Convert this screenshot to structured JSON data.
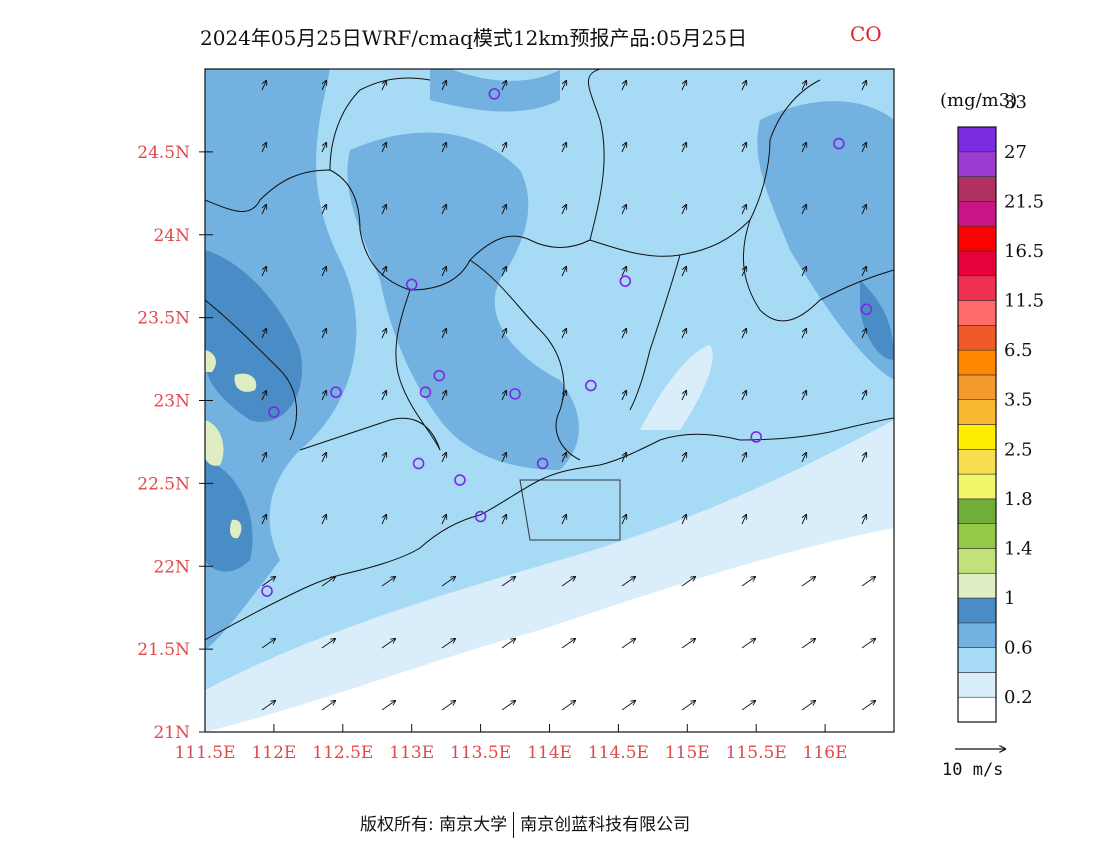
{
  "title": {
    "text": "2024年05月25日WRF/cmaq模式12km预报产品:05月25日",
    "species": "CO"
  },
  "map": {
    "lon_range": [
      111.5,
      116.5
    ],
    "lat_range": [
      21.0,
      25.0
    ],
    "lat_ticks": [
      "21N",
      "21.5N",
      "22N",
      "22.5N",
      "23N",
      "23.5N",
      "24N",
      "24.5N"
    ],
    "lon_ticks": [
      "111.5E",
      "112E",
      "112.5E",
      "113E",
      "113.5E",
      "114E",
      "114.5E",
      "115E",
      "115.5E",
      "116E"
    ],
    "hotspot_circles": [
      [
        113.6,
        24.85
      ],
      [
        116.1,
        24.55
      ],
      [
        113.0,
        23.7
      ],
      [
        114.55,
        23.72
      ],
      [
        116.3,
        23.55
      ],
      [
        112.45,
        23.05
      ],
      [
        112.0,
        22.93
      ],
      [
        113.2,
        23.15
      ],
      [
        113.1,
        23.05
      ],
      [
        113.75,
        23.04
      ],
      [
        114.3,
        23.09
      ],
      [
        115.5,
        22.78
      ],
      [
        113.05,
        22.62
      ],
      [
        113.35,
        22.52
      ],
      [
        113.95,
        22.62
      ],
      [
        113.5,
        22.3
      ],
      [
        111.95,
        21.85
      ]
    ]
  },
  "colorbar": {
    "unit": "(mg/m3)",
    "colors": [
      "#ffffff",
      "#d9eefa",
      "#a6daf5",
      "#72b1e0",
      "#4a8cc5",
      "#dfedc2",
      "#c4e07a",
      "#95c947",
      "#71ad3a",
      "#f0f56a",
      "#f6df50",
      "#ffee00",
      "#f8b832",
      "#f59a2e",
      "#ff8800",
      "#f05a28",
      "#ff6b6b",
      "#f03050",
      "#e8003d",
      "#ff0000",
      "#c71585",
      "#b03060",
      "#9c3bd0",
      "#7b2be0"
    ],
    "labels": [
      "0.2",
      "0.6",
      "1",
      "1.4",
      "1.8",
      "2.5",
      "3.5",
      "6.5",
      "11.5",
      "16.5",
      "21.5",
      "27",
      "33"
    ]
  },
  "wind_scale": {
    "label": "10 m/s"
  },
  "footer": {
    "left": "版权所有: 南京大学",
    "right": "南京创蓝科技有限公司"
  }
}
